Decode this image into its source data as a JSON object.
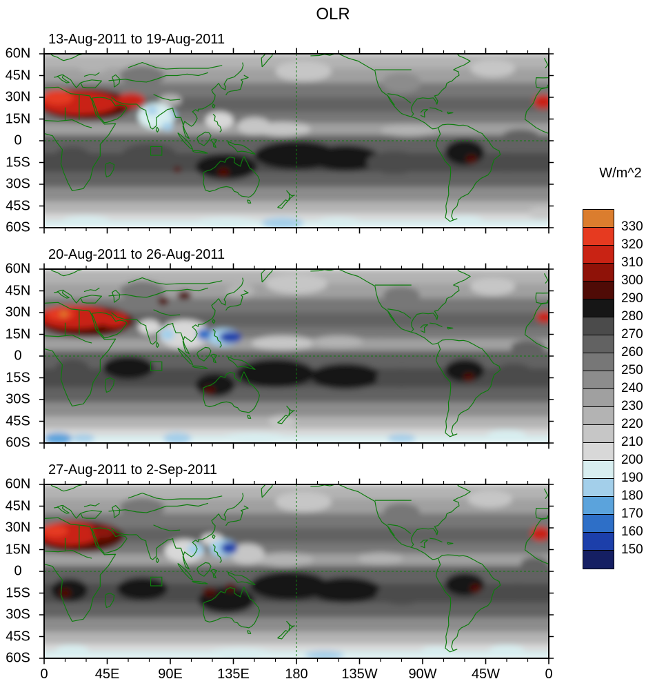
{
  "title": "OLR",
  "panels": [
    {
      "title": "13-Aug-2011 to 19-Aug-2011"
    },
    {
      "title": "20-Aug-2011 to 26-Aug-2011"
    },
    {
      "title": "27-Aug-2011 to 2-Sep-2011"
    }
  ],
  "axes": {
    "y_ticks": [
      "60N",
      "45N",
      "30N",
      "15N",
      "0",
      "15S",
      "30S",
      "45S",
      "60S"
    ],
    "x_ticks": [
      "0",
      "45E",
      "90E",
      "135E",
      "180",
      "135W",
      "90W",
      "45W",
      "0"
    ]
  },
  "colorbar": {
    "units_label": "W/m^2",
    "tick_labels_top_to_bottom": [
      "330",
      "320",
      "310",
      "300",
      "290",
      "280",
      "270",
      "260",
      "250",
      "240",
      "230",
      "220",
      "210",
      "200",
      "190",
      "180",
      "170",
      "160",
      "150"
    ],
    "colors_bottom_to_top": [
      "#151f63",
      "#1c3faa",
      "#2e6fc7",
      "#5ba3dc",
      "#a3cfea",
      "#d8eef0",
      "#d8d8d8",
      "#c6c6c6",
      "#b3b3b3",
      "#a0a0a0",
      "#8c8c8c",
      "#777777",
      "#626262",
      "#4b4b4b",
      "#161616",
      "#4f0b06",
      "#8f1208",
      "#c92314",
      "#e63a20",
      "#db7d2e"
    ]
  },
  "colors": {
    "coastline_green": "#0e7c0e",
    "frame_black": "#000000",
    "background": "#ffffff"
  },
  "chart_data": {
    "type": "heatmap",
    "title": "OLR",
    "units": "W/m^2",
    "lon_range": [
      0,
      360
    ],
    "lat_range": [
      -60,
      60
    ],
    "contour_levels": [
      150,
      160,
      170,
      180,
      190,
      200,
      210,
      220,
      230,
      240,
      250,
      260,
      270,
      280,
      290,
      300,
      310,
      320,
      330
    ],
    "level_step": 10,
    "description": "Three weekly-mean outgoing longwave radiation (OLR) global maps, 60S-60N, longitude 0-360E. Grays span 200-290 W/m^2 (darker = higher OLR), blues mark deep tropical convection below 200 W/m^2, reds mark hot desert emission above 290 W/m^2 (Sahara/Arabia). Green overlay shows coastlines and political boundaries; dashed green lines mark the equator and the 180 meridian; a small green box outlines an Indian Ocean index region near 76-84E, 4-10S.",
    "base_bands_format": "[lat_top, lat_bottom, olr_w_m2] zonal background",
    "base_bands": [
      [
        60,
        50,
        225
      ],
      [
        50,
        40,
        235
      ],
      [
        40,
        30,
        255
      ],
      [
        30,
        20,
        262
      ],
      [
        20,
        12,
        255
      ],
      [
        12,
        4,
        232
      ],
      [
        4,
        -8,
        262
      ],
      [
        -8,
        -22,
        278
      ],
      [
        -22,
        -32,
        265
      ],
      [
        -32,
        -42,
        245
      ],
      [
        -42,
        -50,
        222
      ],
      [
        -50,
        -55,
        205
      ],
      [
        -55,
        -60,
        196
      ]
    ],
    "feature_format": "[lon_deg_east, lat_deg, rx_deg, ry_deg, olr_w_m2] regional anomaly blobs, drawn in order",
    "panels": [
      {
        "label": "13-Aug-2011 to 19-Aug-2011",
        "features": [
          [
            20,
            -12,
            14,
            8,
            272
          ],
          [
            340,
            2,
            14,
            6,
            268
          ],
          [
            75,
            -10,
            20,
            8,
            278
          ],
          [
            130,
            -18,
            22,
            9,
            285
          ],
          [
            180,
            -10,
            30,
            10,
            283
          ],
          [
            215,
            -12,
            25,
            9,
            283
          ],
          [
            250,
            -15,
            20,
            8,
            278
          ],
          [
            300,
            -8,
            14,
            9,
            285
          ],
          [
            330,
            -15,
            14,
            7,
            272
          ],
          [
            255,
            40,
            14,
            7,
            248
          ],
          [
            70,
            45,
            16,
            7,
            250
          ],
          [
            185,
            48,
            20,
            7,
            215
          ],
          [
            320,
            50,
            16,
            6,
            218
          ],
          [
            230,
            55,
            12,
            5,
            222
          ],
          [
            35,
            52,
            12,
            5,
            228
          ],
          [
            170,
            8,
            20,
            5,
            218
          ],
          [
            260,
            7,
            20,
            4,
            228
          ],
          [
            125,
            14,
            10,
            6,
            208
          ],
          [
            150,
            10,
            12,
            6,
            215
          ],
          [
            90,
            28,
            8,
            4,
            222
          ],
          [
            130,
            -57,
            25,
            4,
            192
          ],
          [
            170,
            -57,
            15,
            4,
            188
          ],
          [
            210,
            -57,
            18,
            4,
            190
          ],
          [
            300,
            -56,
            14,
            4,
            195
          ],
          [
            30,
            -56,
            18,
            4,
            198
          ],
          [
            355,
            -50,
            10,
            4,
            210
          ],
          [
            128,
            -22,
            4,
            3,
            295
          ],
          [
            305,
            -13,
            4,
            3,
            296
          ],
          [
            95,
            -20,
            3,
            2,
            292
          ],
          [
            30,
            25,
            34,
            11,
            298
          ],
          [
            25,
            26,
            28,
            8,
            315
          ],
          [
            10,
            30,
            11,
            5,
            322
          ],
          [
            62,
            28,
            10,
            5,
            312
          ],
          [
            356,
            27,
            7,
            5,
            315
          ],
          [
            80,
            17,
            13,
            9,
            198
          ],
          [
            77,
            21,
            4,
            3,
            183
          ],
          [
            88,
            10,
            4,
            3,
            183
          ],
          [
            92,
            18,
            3,
            2,
            180
          ]
        ]
      },
      {
        "label": "20-Aug-2011 to 26-Aug-2011",
        "features": [
          [
            20,
            -10,
            13,
            8,
            275
          ],
          [
            60,
            -8,
            18,
            8,
            280
          ],
          [
            122,
            -20,
            14,
            8,
            288
          ],
          [
            165,
            -12,
            28,
            10,
            285
          ],
          [
            215,
            -14,
            25,
            9,
            283
          ],
          [
            255,
            -15,
            18,
            7,
            276
          ],
          [
            300,
            -10,
            14,
            8,
            285
          ],
          [
            335,
            -12,
            14,
            7,
            272
          ],
          [
            345,
            6,
            12,
            5,
            268
          ],
          [
            70,
            45,
            16,
            7,
            252
          ],
          [
            255,
            42,
            13,
            6,
            250
          ],
          [
            180,
            50,
            22,
            7,
            212
          ],
          [
            320,
            48,
            16,
            6,
            218
          ],
          [
            140,
            45,
            10,
            5,
            225
          ],
          [
            170,
            9,
            22,
            5,
            218
          ],
          [
            210,
            10,
            18,
            4,
            222
          ],
          [
            240,
            8,
            14,
            4,
            230
          ],
          [
            150,
            -57,
            25,
            4,
            192
          ],
          [
            330,
            -55,
            14,
            4,
            196
          ],
          [
            255,
            -57,
            10,
            3,
            188
          ],
          [
            10,
            -57,
            10,
            4,
            178
          ],
          [
            28,
            -57,
            8,
            3,
            185
          ],
          [
            95,
            -57,
            10,
            4,
            182
          ],
          [
            170,
            -45,
            10,
            4,
            212
          ],
          [
            118,
            -24,
            4,
            3,
            298
          ],
          [
            303,
            -15,
            4,
            3,
            297
          ],
          [
            100,
            42,
            5,
            3,
            298
          ],
          [
            85,
            38,
            4,
            3,
            292
          ],
          [
            30,
            24,
            34,
            11,
            298
          ],
          [
            22,
            27,
            26,
            8,
            316
          ],
          [
            12,
            29,
            10,
            4,
            324
          ],
          [
            50,
            25,
            10,
            5,
            310
          ],
          [
            357,
            27,
            6,
            4,
            312
          ],
          [
            14,
            29,
            3,
            2,
            334
          ],
          [
            100,
            15,
            18,
            10,
            205
          ],
          [
            75,
            20,
            8,
            5,
            205
          ],
          [
            88,
            15,
            5,
            4,
            185
          ],
          [
            128,
            13,
            12,
            6,
            182
          ],
          [
            114,
            15,
            5,
            4,
            168
          ],
          [
            133,
            13,
            8,
            4,
            155
          ]
        ]
      },
      {
        "label": "27-Aug-2011 to 2-Sep-2011",
        "features": [
          [
            18,
            -13,
            13,
            8,
            282
          ],
          [
            70,
            -12,
            18,
            8,
            280
          ],
          [
            130,
            -20,
            20,
            9,
            285
          ],
          [
            175,
            -10,
            28,
            10,
            283
          ],
          [
            215,
            -13,
            25,
            9,
            283
          ],
          [
            255,
            -16,
            18,
            7,
            278
          ],
          [
            300,
            -9,
            14,
            8,
            287
          ],
          [
            338,
            -14,
            13,
            6,
            272
          ],
          [
            350,
            5,
            10,
            5,
            268
          ],
          [
            70,
            44,
            16,
            7,
            252
          ],
          [
            255,
            41,
            13,
            6,
            250
          ],
          [
            185,
            48,
            20,
            7,
            215
          ],
          [
            318,
            50,
            16,
            6,
            218
          ],
          [
            95,
            55,
            13,
            5,
            222
          ],
          [
            172,
            8,
            20,
            5,
            220
          ],
          [
            240,
            9,
            16,
            4,
            228
          ],
          [
            145,
            12,
            12,
            7,
            210
          ],
          [
            120,
            22,
            8,
            4,
            205
          ],
          [
            140,
            -57,
            25,
            4,
            192
          ],
          [
            200,
            -58,
            14,
            3,
            188
          ],
          [
            280,
            -56,
            12,
            4,
            190
          ],
          [
            330,
            -55,
            13,
            4,
            195
          ],
          [
            20,
            -55,
            12,
            4,
            198
          ],
          [
            118,
            -14,
            5,
            3,
            296
          ],
          [
            133,
            -11,
            4,
            3,
            294
          ],
          [
            15,
            -15,
            4,
            3,
            294
          ],
          [
            308,
            -12,
            4,
            3,
            297
          ],
          [
            25,
            24,
            32,
            11,
            298
          ],
          [
            18,
            26,
            22,
            8,
            318
          ],
          [
            8,
            28,
            9,
            4,
            325
          ],
          [
            42,
            27,
            8,
            4,
            308
          ],
          [
            354,
            26,
            7,
            5,
            312
          ],
          [
            100,
            14,
            14,
            8,
            200
          ],
          [
            108,
            15,
            6,
            4,
            182
          ],
          [
            128,
            16,
            10,
            6,
            185
          ],
          [
            132,
            16,
            6,
            4,
            158
          ]
        ]
      }
    ],
    "index_region_box": {
      "lon_min": 76,
      "lon_max": 84,
      "lat_min": -10,
      "lat_max": -4
    },
    "reference_lines": [
      "equator dashed green",
      "180 meridian dashed green"
    ],
    "legend_position": "right vertical colorbar"
  }
}
